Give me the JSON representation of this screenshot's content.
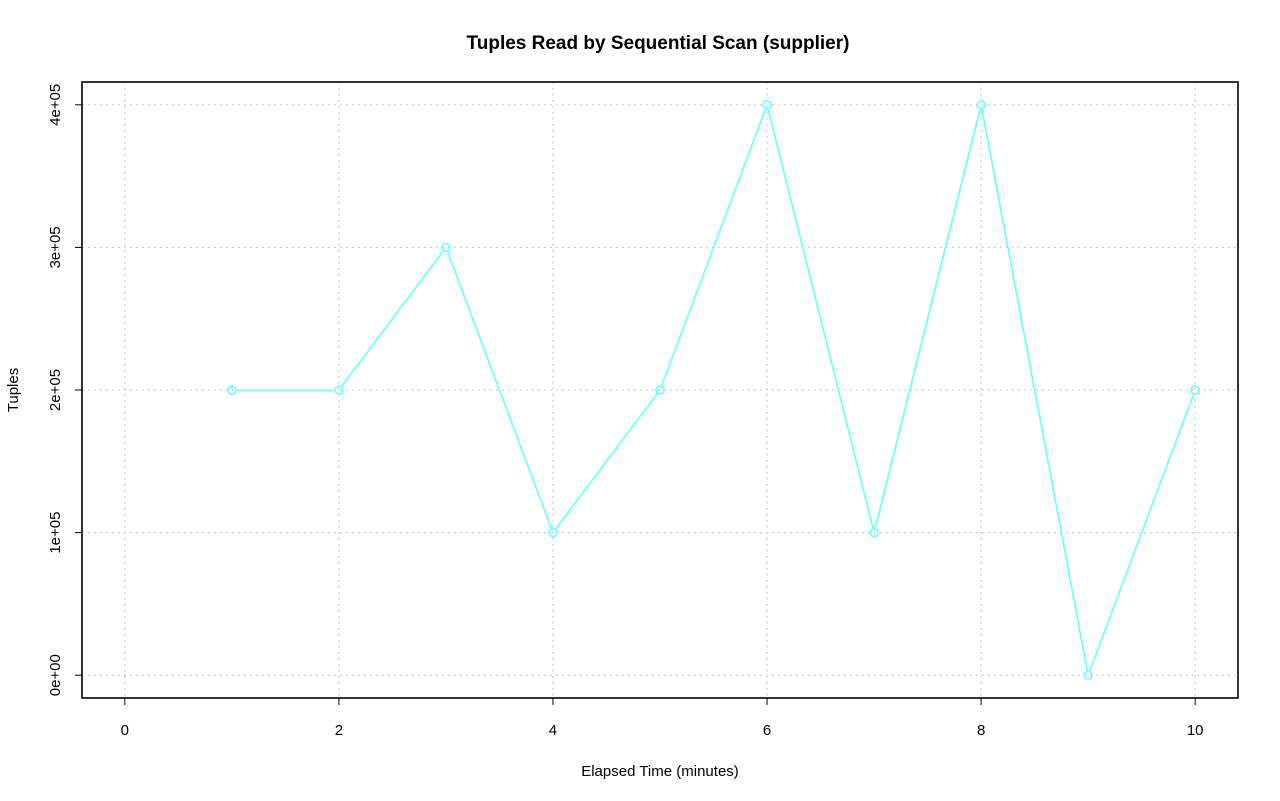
{
  "chart_data": {
    "type": "line",
    "title": "Tuples Read by Sequential Scan (supplier)",
    "xlabel": "Elapsed Time (minutes)",
    "ylabel": "Tuples",
    "x": [
      1,
      2,
      3,
      4,
      5,
      6,
      7,
      8,
      9,
      10
    ],
    "series": [
      {
        "values": [
          200000,
          200000,
          300000,
          100000,
          200000,
          400000,
          100000,
          400000,
          0,
          200000
        ]
      }
    ],
    "xlim": [
      -0.4,
      10.4
    ],
    "ylim": [
      -16000,
      416000
    ],
    "x_ticks": [
      0,
      2,
      4,
      6,
      8,
      10
    ],
    "x_tick_labels": [
      "0",
      "2",
      "4",
      "6",
      "8",
      "10"
    ],
    "y_ticks": [
      0,
      100000,
      200000,
      300000,
      400000
    ],
    "y_tick_labels": [
      "0e+00",
      "1e+05",
      "2e+05",
      "3e+05",
      "4e+05"
    ],
    "x_grid": [
      0,
      2,
      4,
      6,
      8,
      10
    ],
    "y_grid": [
      0,
      100000,
      200000,
      300000,
      400000
    ],
    "grid": true,
    "series_color": "#66ffff",
    "marker": "open-circle"
  }
}
